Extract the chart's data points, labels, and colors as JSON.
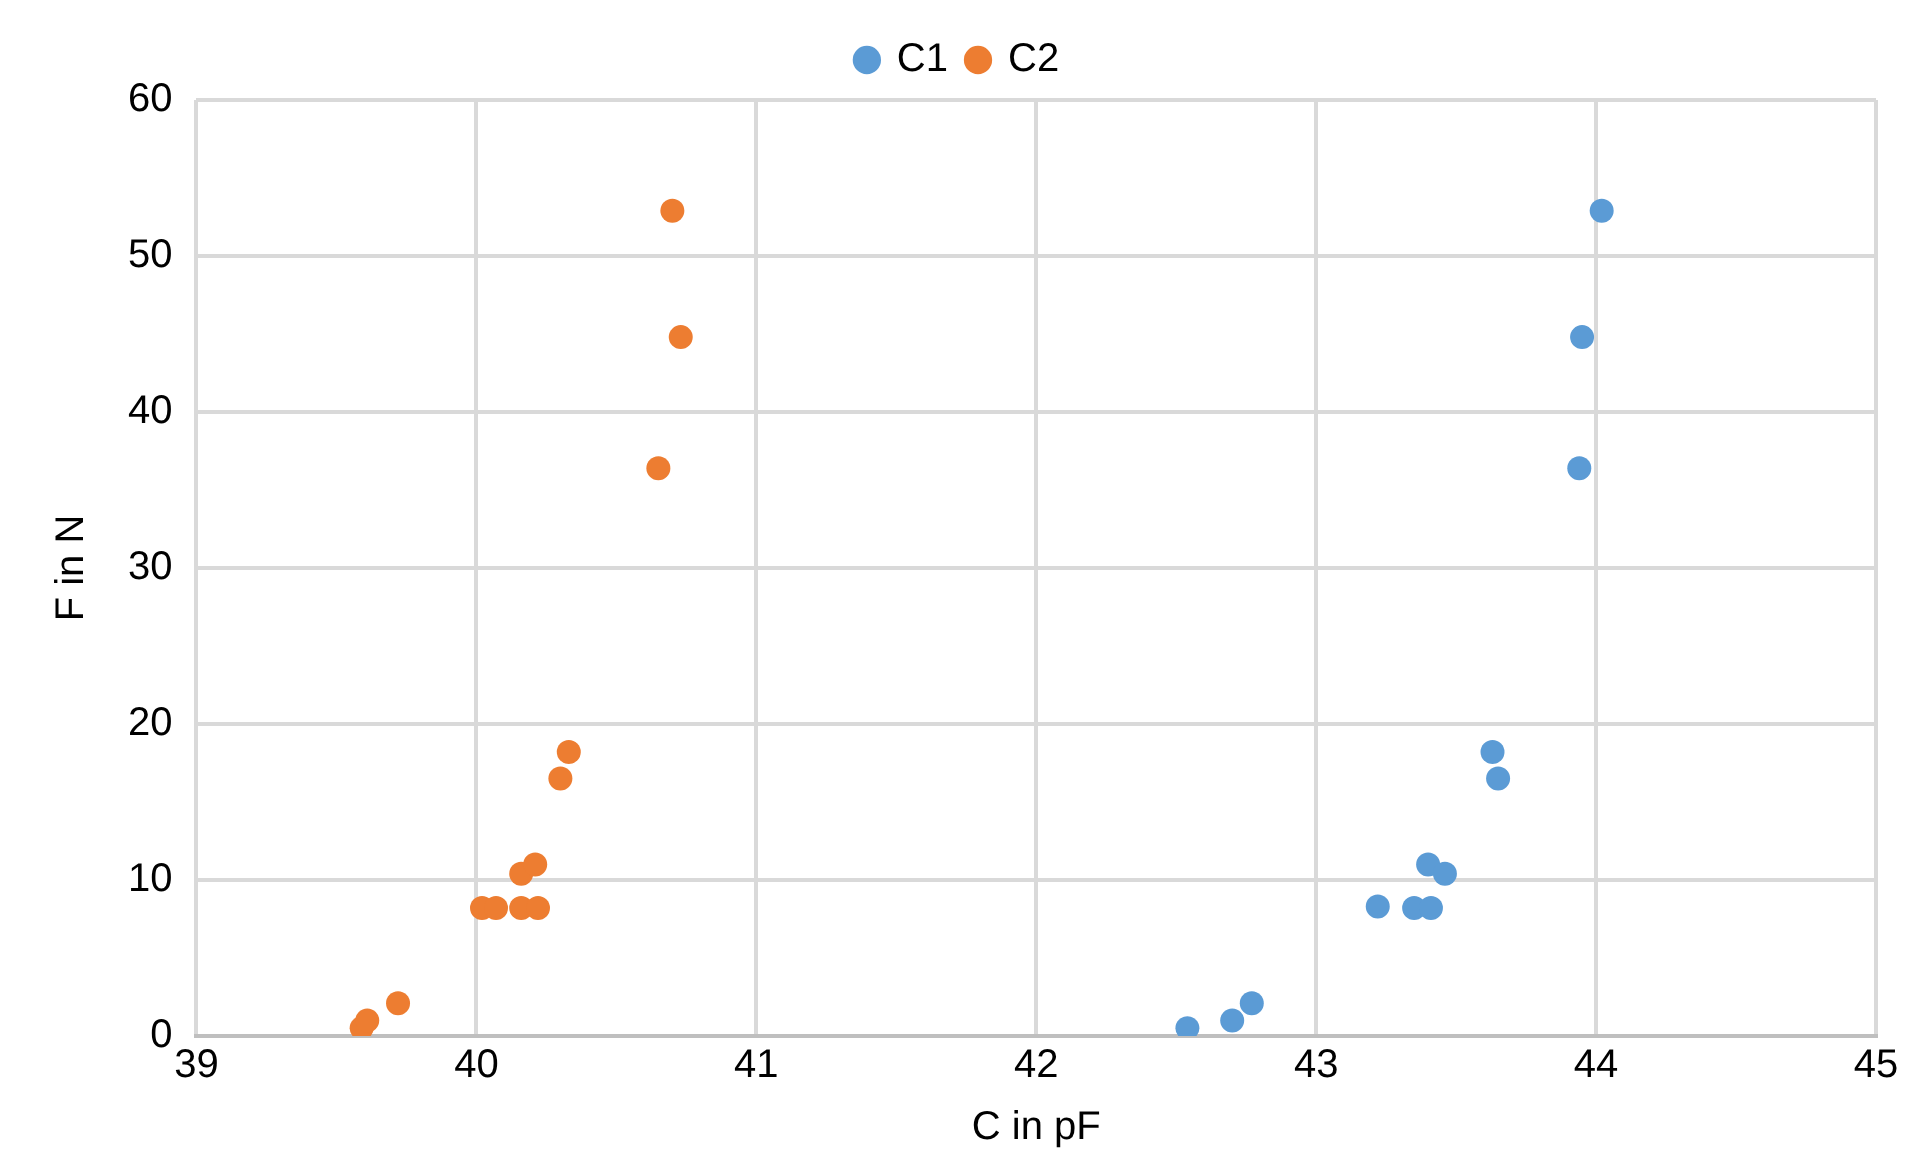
{
  "chart_data": {
    "type": "scatter",
    "xlabel": "C in pF",
    "ylabel": "F in N",
    "xlim": [
      39,
      45
    ],
    "xticks": [
      39,
      40,
      41,
      42,
      43,
      44,
      45
    ],
    "ylim": [
      0,
      60
    ],
    "yticks": [
      0,
      10,
      20,
      30,
      40,
      50,
      60
    ],
    "grid": true,
    "legend": "top",
    "marker": "circle",
    "series": [
      {
        "name": "C1",
        "color": "#5b9bd5",
        "x": [
          42.54,
          42.7,
          42.77,
          43.22,
          43.35,
          43.41,
          43.4,
          43.46,
          43.63,
          43.65,
          43.94,
          43.95,
          44.02
        ],
        "values": [
          0.5,
          1.0,
          2.1,
          8.3,
          8.2,
          8.2,
          11.0,
          10.4,
          18.2,
          16.5,
          36.4,
          44.8,
          52.9
        ]
      },
      {
        "name": "C2",
        "color": "#ed7d31",
        "x": [
          39.59,
          39.61,
          39.72,
          40.02,
          40.07,
          40.16,
          40.22,
          40.16,
          40.21,
          40.3,
          40.33,
          40.65,
          40.73,
          40.7
        ],
        "values": [
          0.5,
          1.0,
          2.1,
          8.2,
          8.2,
          8.2,
          8.2,
          10.4,
          11.0,
          16.5,
          18.2,
          36.4,
          44.8,
          52.9
        ]
      }
    ]
  }
}
